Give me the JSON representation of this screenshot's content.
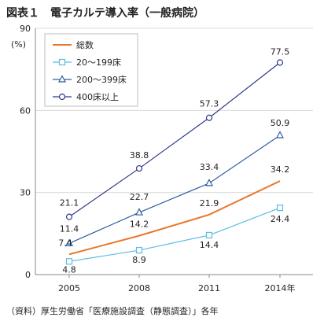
{
  "title": "図表１　電子カルテ導入率（一般病院）",
  "source": "（資料）厚生労働省「医療施設調査（静態調査）」各年",
  "chart_data": {
    "type": "line",
    "ylabel": "(%)",
    "ylim": [
      0,
      90
    ],
    "yticks": [
      "0",
      "30",
      "60",
      "90"
    ],
    "categories": [
      "2005",
      "2008",
      "2011",
      "2014年"
    ],
    "legend_position": "top-left",
    "series": [
      {
        "name": "総数",
        "values": [
          7.4,
          14.2,
          21.9,
          34.2
        ],
        "labels": [
          "7.4",
          "14.2",
          "21.9",
          "34.2"
        ],
        "color": "#E8782E",
        "marker": "none"
      },
      {
        "name": "20～199床",
        "values": [
          4.8,
          8.9,
          14.4,
          24.4
        ],
        "labels": [
          "4.8",
          "8.9",
          "14.4",
          "24.4"
        ],
        "color": "#5BBDE0",
        "marker": "square"
      },
      {
        "name": "200～399床",
        "values": [
          11.4,
          22.7,
          33.4,
          50.9
        ],
        "labels": [
          "11.4",
          "22.7",
          "33.4",
          "50.9"
        ],
        "color": "#2F5E9E",
        "marker": "triangle"
      },
      {
        "name": "400床以上",
        "values": [
          21.1,
          38.8,
          57.3,
          77.5
        ],
        "labels": [
          "21.1",
          "38.8",
          "57.3",
          "77.5"
        ],
        "color": "#2E3A8C",
        "marker": "circle"
      }
    ]
  }
}
